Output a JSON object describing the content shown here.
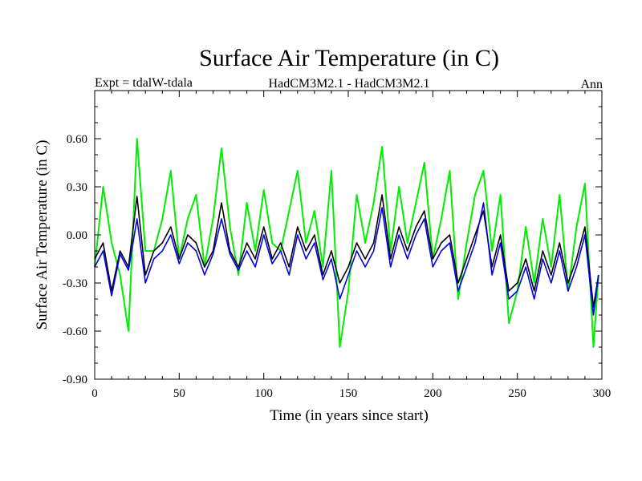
{
  "chart_data": {
    "type": "line",
    "title": "Surface Air Temperature (in C)",
    "subtitle_left": "Expt = tdalW-tdala",
    "subtitle_center": "HadCM3M2.1 - HadCM3M2.1",
    "subtitle_right": "Ann",
    "xlabel": "Time (in years since start)",
    "ylabel": "Surface Air Temperature (in C)",
    "xlim": [
      0,
      300
    ],
    "ylim": [
      -0.9,
      0.9
    ],
    "x_ticks": [
      0,
      50,
      100,
      150,
      200,
      250,
      300
    ],
    "x_tick_labels": [
      "0",
      "50",
      "100",
      "150",
      "200",
      "250",
      "300"
    ],
    "y_ticks": [
      -0.9,
      -0.6,
      -0.3,
      0.0,
      0.3,
      0.6
    ],
    "y_tick_labels": [
      "-0.90",
      "-0.60",
      "-0.30",
      "0.00",
      "0.30",
      "0.60"
    ],
    "series": [
      {
        "name": "green",
        "color": "#00ee00",
        "x": [
          0,
          5,
          10,
          15,
          20,
          25,
          30,
          35,
          40,
          45,
          50,
          55,
          60,
          65,
          70,
          75,
          80,
          85,
          90,
          95,
          100,
          105,
          110,
          115,
          120,
          125,
          130,
          135,
          140,
          145,
          150,
          155,
          160,
          165,
          170,
          175,
          180,
          185,
          190,
          195,
          200,
          205,
          210,
          215,
          220,
          225,
          230,
          235,
          240,
          245,
          250,
          255,
          260,
          265,
          270,
          275,
          280,
          285,
          290,
          295,
          298
        ],
        "values": [
          -0.2,
          0.3,
          -0.05,
          -0.25,
          -0.6,
          0.6,
          -0.1,
          -0.1,
          0.1,
          0.4,
          -0.15,
          0.1,
          0.25,
          -0.2,
          0.1,
          0.54,
          0.05,
          -0.25,
          0.2,
          -0.1,
          0.28,
          -0.05,
          -0.1,
          0.15,
          0.4,
          -0.05,
          0.15,
          -0.2,
          0.4,
          -0.7,
          -0.35,
          0.25,
          -0.05,
          0.2,
          0.55,
          -0.1,
          0.3,
          -0.05,
          0.2,
          0.45,
          -0.15,
          0.1,
          0.4,
          -0.4,
          -0.05,
          0.25,
          0.4,
          -0.1,
          0.25,
          -0.55,
          -0.35,
          0.05,
          -0.3,
          0.1,
          -0.2,
          0.25,
          -0.35,
          0.05,
          0.32,
          -0.7,
          -0.25
        ]
      },
      {
        "name": "black",
        "color": "#000000",
        "x": [
          0,
          5,
          10,
          15,
          20,
          25,
          30,
          35,
          40,
          45,
          50,
          55,
          60,
          65,
          70,
          75,
          80,
          85,
          90,
          95,
          100,
          105,
          110,
          115,
          120,
          125,
          130,
          135,
          140,
          145,
          150,
          155,
          160,
          165,
          170,
          175,
          180,
          185,
          190,
          195,
          200,
          205,
          210,
          215,
          220,
          225,
          230,
          235,
          240,
          245,
          250,
          255,
          260,
          265,
          270,
          275,
          280,
          285,
          290,
          295,
          298
        ],
        "values": [
          -0.15,
          -0.05,
          -0.35,
          -0.1,
          -0.2,
          0.24,
          -0.25,
          -0.1,
          -0.05,
          0.05,
          -0.15,
          0.0,
          -0.05,
          -0.2,
          -0.1,
          0.2,
          -0.1,
          -0.2,
          -0.05,
          -0.15,
          0.05,
          -0.15,
          -0.05,
          -0.2,
          0.05,
          -0.1,
          0.0,
          -0.25,
          -0.1,
          -0.3,
          -0.2,
          -0.05,
          -0.15,
          -0.05,
          0.25,
          -0.15,
          0.05,
          -0.1,
          0.05,
          0.15,
          -0.15,
          -0.05,
          0.0,
          -0.3,
          -0.15,
          0.0,
          0.15,
          -0.2,
          0.0,
          -0.35,
          -0.3,
          -0.15,
          -0.35,
          -0.1,
          -0.25,
          -0.05,
          -0.3,
          -0.15,
          0.05,
          -0.45,
          -0.25
        ]
      },
      {
        "name": "blue",
        "color": "#0000ee",
        "x": [
          0,
          5,
          10,
          15,
          20,
          25,
          30,
          35,
          40,
          45,
          50,
          55,
          60,
          65,
          70,
          75,
          80,
          85,
          90,
          95,
          100,
          105,
          110,
          115,
          120,
          125,
          130,
          135,
          140,
          145,
          150,
          155,
          160,
          165,
          170,
          175,
          180,
          185,
          190,
          195,
          200,
          205,
          210,
          215,
          220,
          225,
          230,
          235,
          240,
          245,
          250,
          255,
          260,
          265,
          270,
          275,
          280,
          285,
          290,
          295,
          298
        ],
        "values": [
          -0.2,
          -0.1,
          -0.38,
          -0.12,
          -0.22,
          0.1,
          -0.3,
          -0.15,
          -0.1,
          0.0,
          -0.18,
          -0.05,
          -0.1,
          -0.25,
          -0.12,
          0.1,
          -0.12,
          -0.22,
          -0.1,
          -0.2,
          0.0,
          -0.18,
          -0.1,
          -0.25,
          0.0,
          -0.15,
          -0.05,
          -0.28,
          -0.15,
          -0.4,
          -0.25,
          -0.1,
          -0.2,
          -0.1,
          0.17,
          -0.2,
          0.0,
          -0.15,
          0.0,
          0.1,
          -0.2,
          -0.1,
          -0.05,
          -0.35,
          -0.2,
          -0.05,
          0.2,
          -0.25,
          -0.05,
          -0.4,
          -0.35,
          -0.2,
          -0.4,
          -0.15,
          -0.3,
          -0.1,
          -0.35,
          -0.2,
          0.0,
          -0.5,
          -0.25
        ]
      }
    ]
  }
}
